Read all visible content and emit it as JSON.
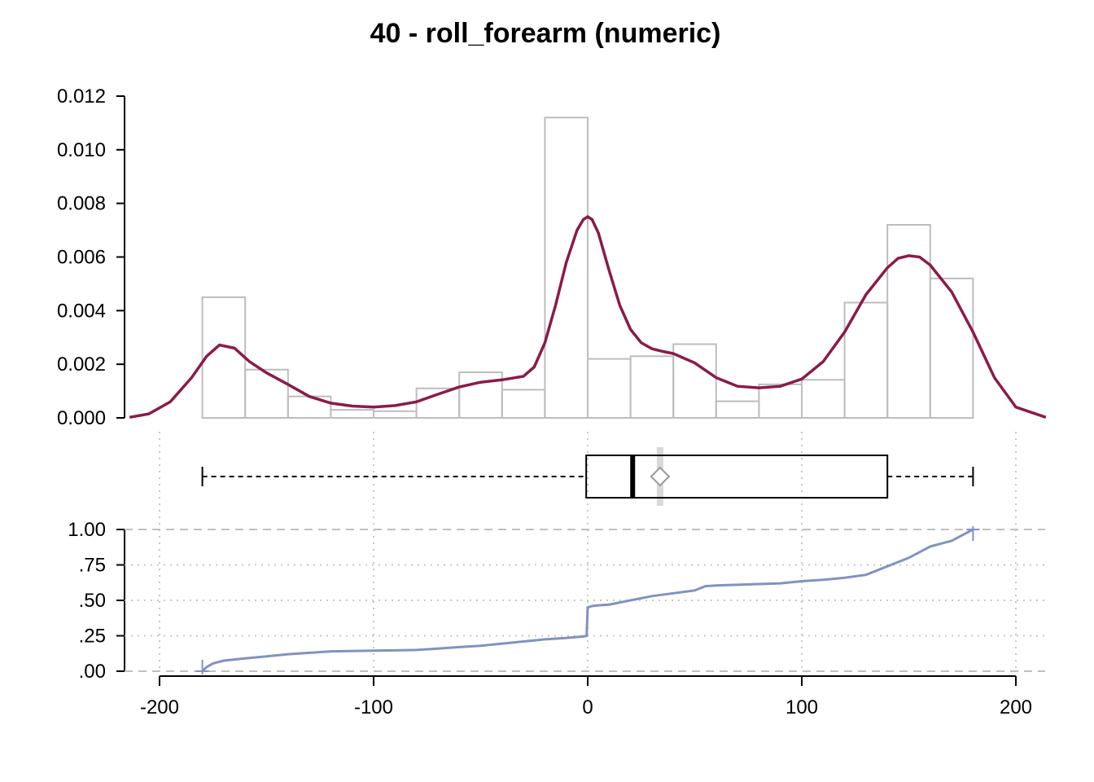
{
  "chart_data": {
    "title": "40 - roll_forearm (numeric)",
    "xlim": [
      -214,
      214
    ],
    "x_ticks": [
      "-200",
      "-100",
      "0",
      "100",
      "200"
    ],
    "x_tick_values": [
      -200,
      -100,
      0,
      100,
      200
    ],
    "histogram": {
      "type": "bar",
      "bin_width": 20,
      "bin_starts": [
        -180,
        -160,
        -140,
        -120,
        -100,
        -80,
        -60,
        -40,
        -20,
        0,
        20,
        40,
        60,
        80,
        100,
        120,
        140,
        160
      ],
      "values": [
        0.0045,
        0.0018,
        0.0008,
        0.0003,
        0.00025,
        0.0011,
        0.0017,
        0.00105,
        0.0112,
        0.0022,
        0.0023,
        0.00275,
        0.00062,
        0.00125,
        0.00142,
        0.0043,
        0.0072,
        0.0052
      ],
      "ylim": [
        0,
        0.012
      ],
      "y_ticks": [
        "0.000",
        "0.002",
        "0.004",
        "0.006",
        "0.008",
        "0.010",
        "0.012"
      ],
      "y_tick_values": [
        0,
        0.002,
        0.004,
        0.006,
        0.008,
        0.01,
        0.012
      ],
      "bar_color": "#bdbdbd"
    },
    "density": {
      "type": "line",
      "color": "#8b1a4a",
      "x": [
        -214,
        -205,
        -195,
        -185,
        -178,
        -172,
        -165,
        -158,
        -150,
        -140,
        -130,
        -120,
        -110,
        -100,
        -90,
        -80,
        -70,
        -60,
        -50,
        -40,
        -30,
        -25,
        -20,
        -15,
        -10,
        -5,
        -2,
        0,
        2,
        5,
        10,
        15,
        20,
        25,
        30,
        35,
        40,
        50,
        60,
        70,
        80,
        90,
        100,
        110,
        120,
        130,
        140,
        145,
        150,
        155,
        160,
        170,
        180,
        190,
        200,
        214
      ],
      "y": [
        2e-05,
        0.00015,
        0.0006,
        0.0015,
        0.0023,
        0.00272,
        0.0026,
        0.0021,
        0.00168,
        0.00125,
        0.0008,
        0.00055,
        0.00044,
        0.0004,
        0.00046,
        0.0006,
        0.00088,
        0.00115,
        0.00133,
        0.00142,
        0.00155,
        0.0019,
        0.0028,
        0.0042,
        0.0058,
        0.007,
        0.0074,
        0.0075,
        0.0074,
        0.0069,
        0.0055,
        0.0042,
        0.0033,
        0.0028,
        0.00258,
        0.00248,
        0.0024,
        0.00205,
        0.0015,
        0.00118,
        0.00112,
        0.00118,
        0.00145,
        0.0021,
        0.0032,
        0.0046,
        0.0056,
        0.00595,
        0.00605,
        0.006,
        0.0057,
        0.0047,
        0.0032,
        0.0015,
        0.0004,
        2e-05
      ]
    },
    "boxplot": {
      "min": -180,
      "q1": -0.7,
      "median": 21,
      "mean": 33.8,
      "q3": 140,
      "max": 180
    },
    "ecdf": {
      "type": "line",
      "color": "#7f93c0",
      "ylim": [
        0,
        1
      ],
      "y_ticks": [
        ".00",
        ".25",
        ".50",
        ".75",
        "1.00"
      ],
      "y_tick_values": [
        0,
        0.25,
        0.5,
        0.75,
        1
      ],
      "x": [
        -180,
        -178,
        -175,
        -170,
        -160,
        -150,
        -140,
        -130,
        -120,
        -100,
        -80,
        -70,
        -60,
        -50,
        -40,
        -30,
        -20,
        -10,
        -2,
        -0.5,
        0,
        2,
        5,
        10,
        20,
        30,
        40,
        50,
        55,
        60,
        70,
        80,
        90,
        100,
        110,
        120,
        130,
        140,
        145,
        150,
        155,
        160,
        170,
        180
      ],
      "y": [
        0,
        0.03,
        0.055,
        0.075,
        0.09,
        0.105,
        0.12,
        0.13,
        0.14,
        0.145,
        0.15,
        0.16,
        0.17,
        0.18,
        0.195,
        0.21,
        0.225,
        0.235,
        0.245,
        0.25,
        0.45,
        0.46,
        0.465,
        0.47,
        0.5,
        0.53,
        0.55,
        0.57,
        0.6,
        0.605,
        0.61,
        0.615,
        0.62,
        0.635,
        0.645,
        0.66,
        0.68,
        0.74,
        0.77,
        0.8,
        0.84,
        0.88,
        0.92,
        1.0
      ]
    }
  }
}
